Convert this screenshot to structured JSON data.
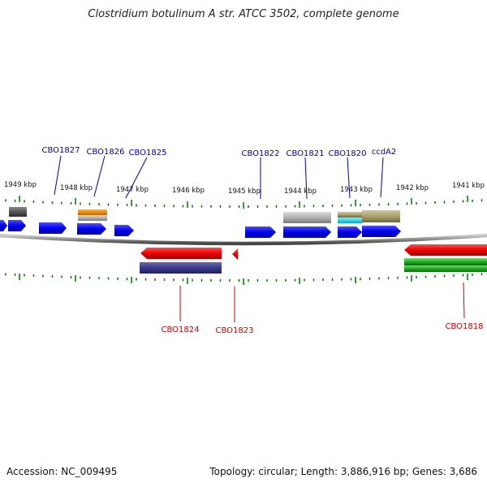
{
  "title": "Clostridium botulinum A str. ATCC 3502, complete genome",
  "accession": "Accession: NC_009495",
  "topology": "Topology: circular; Length: 3,886,916 bp; Genes: 3,686",
  "kbp_labels": [
    "1949 kbp",
    "1948 kbp",
    "1947 kbp",
    "1946 kbp",
    "1945 kbp",
    "1944 kbp",
    "1943 kbp",
    "1942 kbp",
    "1941 kbp"
  ],
  "gene_labels_top": [
    "CBO1827",
    "CBO1826",
    "CBO1825",
    "CBO1822",
    "CBO1821",
    "CBO1820",
    "ccdA2"
  ],
  "gene_labels_bottom": [
    "CBO1824",
    "CBO1823",
    "CBO1818"
  ],
  "colors": {
    "forward": "#0000ee",
    "reverse": "#ee0000",
    "label_top": "#0000aa",
    "label_bottom": "#cc0000",
    "tick": "#007700",
    "backbone": "#888888",
    "orange": "#e88a00",
    "gray": "#aaaaaa",
    "dark_gray": "#555555",
    "navy": "#3a3a88",
    "khaki": "#aaa070",
    "cyan": "#00d8e8",
    "green": "#22aa22"
  }
}
